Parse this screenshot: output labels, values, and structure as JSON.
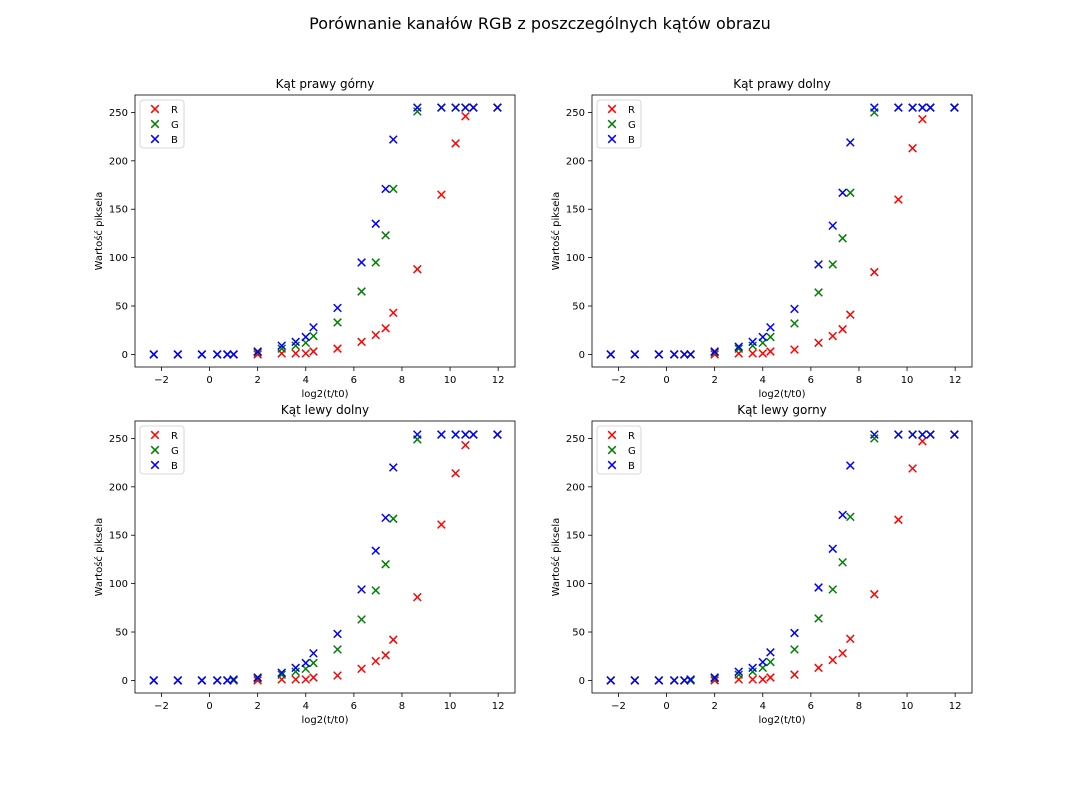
{
  "figure_title": "Porównanie kanałów RGB z poszczególnych kątów obrazu",
  "colors": {
    "R": "#ff0000",
    "G": "#008000",
    "B": "#0000ff"
  },
  "chart_data": [
    {
      "type": "scatter",
      "title": "Kąt prawy górny",
      "xlabel": "log2(t/t0)",
      "ylabel": "Wartość piksela",
      "xlim": [
        -3.1,
        12.7
      ],
      "ylim": [
        -13,
        268
      ],
      "xticks": [
        -2,
        0,
        2,
        4,
        6,
        8,
        10,
        12
      ],
      "yticks": [
        0,
        50,
        100,
        150,
        200,
        250
      ],
      "grid": false,
      "legend": "upper-left",
      "x": [
        -2.32,
        -1.32,
        -0.32,
        0.32,
        0.74,
        1.0,
        2.0,
        3.0,
        3.58,
        4.0,
        4.32,
        5.32,
        6.32,
        6.91,
        7.32,
        7.64,
        8.64,
        9.64,
        10.23,
        10.64,
        10.97,
        11.97
      ],
      "series": [
        {
          "name": "R",
          "marker": "x",
          "values": [
            0,
            0,
            0,
            0,
            0,
            0,
            0,
            1,
            1,
            1,
            3,
            6,
            13,
            20,
            27,
            43,
            88,
            165,
            218,
            246,
            255,
            255
          ]
        },
        {
          "name": "G",
          "marker": "x",
          "values": [
            0,
            0,
            0,
            0,
            0,
            0,
            2,
            6,
            9,
            12,
            19,
            33,
            65,
            95,
            123,
            171,
            251,
            255,
            255,
            255,
            255,
            255
          ]
        },
        {
          "name": "B",
          "marker": "x",
          "values": [
            0,
            0,
            0,
            0,
            0,
            0,
            3,
            9,
            13,
            18,
            28,
            48,
            95,
            135,
            171,
            222,
            255,
            255,
            255,
            255,
            255,
            255
          ]
        }
      ]
    },
    {
      "type": "scatter",
      "title": "Kąt prawy dolny",
      "xlabel": "log2(t/t0)",
      "ylabel": "Wartość piksela",
      "xlim": [
        -3.1,
        12.7
      ],
      "ylim": [
        -13,
        268
      ],
      "xticks": [
        -2,
        0,
        2,
        4,
        6,
        8,
        10,
        12
      ],
      "yticks": [
        0,
        50,
        100,
        150,
        200,
        250
      ],
      "grid": false,
      "legend": "upper-left",
      "x": [
        -2.32,
        -1.32,
        -0.32,
        0.32,
        0.74,
        1.0,
        2.0,
        3.0,
        3.58,
        4.0,
        4.32,
        5.32,
        6.32,
        6.91,
        7.32,
        7.64,
        8.64,
        9.64,
        10.23,
        10.64,
        10.97,
        11.97
      ],
      "series": [
        {
          "name": "R",
          "marker": "x",
          "values": [
            0,
            0,
            0,
            0,
            0,
            0,
            0,
            1,
            1,
            1,
            3,
            5,
            12,
            19,
            26,
            41,
            85,
            160,
            213,
            243,
            255,
            255
          ]
        },
        {
          "name": "G",
          "marker": "x",
          "values": [
            0,
            0,
            0,
            0,
            0,
            0,
            2,
            6,
            9,
            12,
            18,
            32,
            64,
            93,
            120,
            167,
            250,
            255,
            255,
            255,
            255,
            255
          ]
        },
        {
          "name": "B",
          "marker": "x",
          "values": [
            0,
            0,
            0,
            0,
            0,
            0,
            3,
            8,
            13,
            18,
            28,
            47,
            93,
            133,
            167,
            219,
            255,
            255,
            255,
            255,
            255,
            255
          ]
        }
      ]
    },
    {
      "type": "scatter",
      "title": "Kąt lewy dolny",
      "xlabel": "log2(t/t0)",
      "ylabel": "Wartość piksela",
      "xlim": [
        -3.1,
        12.7
      ],
      "ylim": [
        -13,
        268
      ],
      "xticks": [
        -2,
        0,
        2,
        4,
        6,
        8,
        10,
        12
      ],
      "yticks": [
        0,
        50,
        100,
        150,
        200,
        250
      ],
      "grid": false,
      "legend": "upper-left",
      "x": [
        -2.32,
        -1.32,
        -0.32,
        0.32,
        0.74,
        1.0,
        2.0,
        3.0,
        3.58,
        4.0,
        4.32,
        5.32,
        6.32,
        6.91,
        7.32,
        7.64,
        8.64,
        9.64,
        10.23,
        10.64,
        10.97,
        11.97
      ],
      "series": [
        {
          "name": "R",
          "marker": "x",
          "values": [
            0,
            0,
            0,
            0,
            0,
            0,
            0,
            1,
            1,
            1,
            3,
            5,
            12,
            20,
            26,
            42,
            86,
            161,
            214,
            243,
            254,
            254
          ]
        },
        {
          "name": "G",
          "marker": "x",
          "values": [
            0,
            0,
            0,
            0,
            0,
            0,
            2,
            6,
            9,
            12,
            18,
            32,
            63,
            93,
            120,
            167,
            249,
            254,
            254,
            254,
            254,
            254
          ]
        },
        {
          "name": "B",
          "marker": "x",
          "values": [
            0,
            0,
            0,
            0,
            0,
            1,
            3,
            8,
            13,
            18,
            28,
            48,
            94,
            134,
            168,
            220,
            254,
            254,
            254,
            254,
            254,
            254
          ]
        }
      ]
    },
    {
      "type": "scatter",
      "title": "Kąt lewy gorny",
      "xlabel": "log2(t/t0)",
      "ylabel": "Wartość piksela",
      "xlim": [
        -3.1,
        12.7
      ],
      "ylim": [
        -13,
        268
      ],
      "xticks": [
        -2,
        0,
        2,
        4,
        6,
        8,
        10,
        12
      ],
      "yticks": [
        0,
        50,
        100,
        150,
        200,
        250
      ],
      "grid": false,
      "legend": "upper-left",
      "x": [
        -2.32,
        -1.32,
        -0.32,
        0.32,
        0.74,
        1.0,
        2.0,
        3.0,
        3.58,
        4.0,
        4.32,
        5.32,
        6.32,
        6.91,
        7.32,
        7.64,
        8.64,
        9.64,
        10.23,
        10.64,
        10.97,
        11.97
      ],
      "series": [
        {
          "name": "R",
          "marker": "x",
          "values": [
            0,
            0,
            0,
            0,
            0,
            0,
            0,
            1,
            1,
            1,
            3,
            6,
            13,
            21,
            28,
            43,
            89,
            166,
            219,
            247,
            254,
            254
          ]
        },
        {
          "name": "G",
          "marker": "x",
          "values": [
            0,
            0,
            0,
            0,
            0,
            0,
            2,
            6,
            9,
            13,
            19,
            32,
            64,
            94,
            122,
            169,
            250,
            254,
            254,
            254,
            254,
            254
          ]
        },
        {
          "name": "B",
          "marker": "x",
          "values": [
            0,
            0,
            0,
            0,
            0,
            1,
            3,
            9,
            13,
            19,
            29,
            49,
            96,
            136,
            171,
            222,
            254,
            254,
            254,
            254,
            254,
            254
          ]
        }
      ]
    }
  ]
}
